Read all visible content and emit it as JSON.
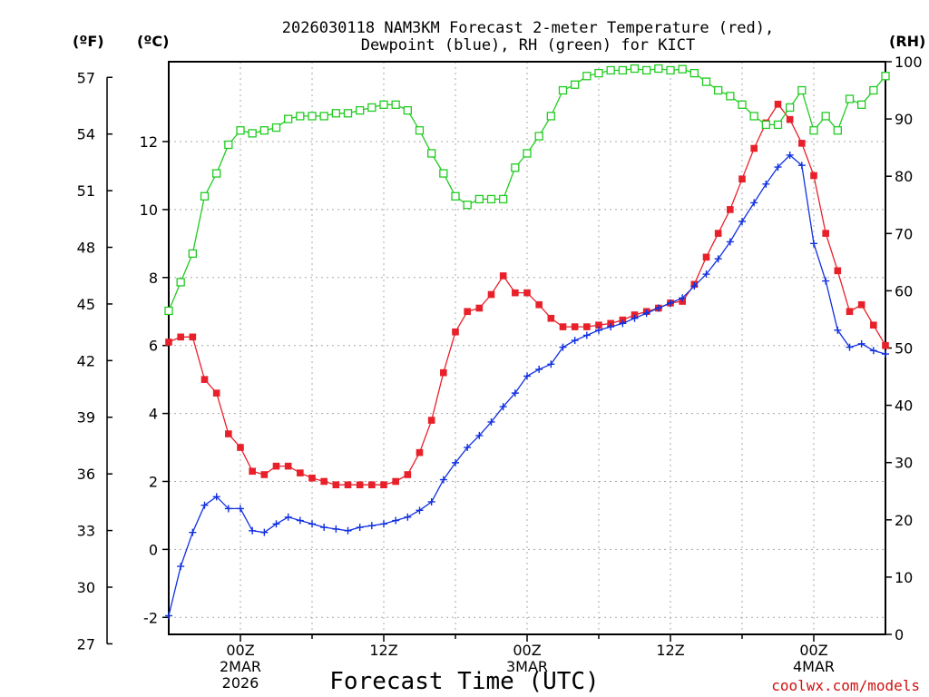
{
  "chart_data": {
    "type": "line",
    "title_line1": "2026030118 NAM3KM Forecast 2-meter Temperature (red),",
    "title_line2": "Dewpoint (blue), RH (green) for KICT",
    "xlabel": "Forecast Time (UTC)",
    "credit": "coolwx.com/models",
    "left_outer_unit": "(ºF)",
    "left_inner_unit": "(ºC)",
    "right_unit": "(RH)",
    "x_hours": [
      -6,
      42
    ],
    "ylim_c": [
      -2.5,
      14.35
    ],
    "ylim_rh": [
      0,
      100
    ],
    "f_ticks": [
      "27",
      "30",
      "33",
      "36",
      "39",
      "42",
      "45",
      "48",
      "51",
      "54",
      "57"
    ],
    "c_ticks": [
      "-2",
      "0",
      "2",
      "4",
      "6",
      "8",
      "10",
      "12"
    ],
    "rh_ticks": [
      "0",
      "10",
      "20",
      "30",
      "40",
      "50",
      "60",
      "70",
      "80",
      "90",
      "100"
    ],
    "x_ticks": [
      {
        "hour": 0,
        "label": "00Z",
        "sub1": "2MAR",
        "sub2": "2026"
      },
      {
        "hour": 12,
        "label": "12Z",
        "sub1": "",
        "sub2": ""
      },
      {
        "hour": 24,
        "label": "00Z",
        "sub1": "3MAR",
        "sub2": ""
      },
      {
        "hour": 36,
        "label": "12Z",
        "sub1": "",
        "sub2": ""
      },
      {
        "hour": 48,
        "label": "00Z",
        "sub1": "4MAR",
        "sub2": ""
      }
    ],
    "x_range_hours": [
      -6,
      54
    ],
    "series": [
      {
        "name": "Temperature",
        "units": "C",
        "color": "#e8202a",
        "marker": "filled-square",
        "hours": [
          -6,
          -5,
          -4,
          -3,
          -2,
          -1,
          0,
          1,
          2,
          3,
          4,
          5,
          6,
          7,
          8,
          9,
          10,
          11,
          12,
          13,
          14,
          15,
          16,
          17,
          18,
          19,
          20,
          21,
          22,
          23,
          24,
          25,
          26,
          27,
          28,
          29,
          30,
          31,
          32,
          33,
          34,
          35,
          36,
          37,
          38,
          39,
          40,
          41,
          42,
          43,
          44,
          45,
          46,
          47,
          48,
          49,
          50,
          51,
          52,
          53,
          54
        ],
        "values": [
          6.1,
          6.25,
          6.25,
          5.0,
          4.6,
          3.4,
          3.0,
          2.3,
          2.2,
          2.45,
          2.45,
          2.25,
          2.1,
          2.0,
          1.9,
          1.9,
          1.9,
          1.9,
          1.9,
          2.0,
          2.2,
          2.85,
          3.8,
          5.2,
          6.4,
          7.0,
          7.1,
          7.5,
          8.05,
          7.55,
          7.55,
          7.2,
          6.8,
          6.55,
          6.55,
          6.55,
          6.6,
          6.65,
          6.75,
          6.9,
          7.0,
          7.1,
          7.25,
          7.3,
          7.8,
          8.6,
          9.3,
          10.0,
          10.9,
          11.8,
          12.55,
          13.1,
          12.65,
          11.95,
          11.0,
          9.3,
          8.2,
          7.0,
          7.2,
          6.6,
          6.0
        ]
      },
      {
        "name": "Dewpoint",
        "units": "C",
        "color": "#1030e0",
        "marker": "plus",
        "hours": [
          -6,
          -5,
          -4,
          -3,
          -2,
          -1,
          0,
          1,
          2,
          3,
          4,
          5,
          6,
          7,
          8,
          9,
          10,
          11,
          12,
          13,
          14,
          15,
          16,
          17,
          18,
          19,
          20,
          21,
          22,
          23,
          24,
          25,
          26,
          27,
          28,
          29,
          30,
          31,
          32,
          33,
          34,
          35,
          36,
          37,
          38,
          39,
          40,
          41,
          42,
          43,
          44,
          45,
          46,
          47,
          48,
          49,
          50,
          51,
          52,
          53,
          54
        ],
        "values": [
          -1.95,
          -0.5,
          0.5,
          1.3,
          1.55,
          1.2,
          1.2,
          0.55,
          0.5,
          0.75,
          0.95,
          0.85,
          0.75,
          0.65,
          0.6,
          0.55,
          0.65,
          0.7,
          0.75,
          0.85,
          0.95,
          1.15,
          1.4,
          2.05,
          2.55,
          3.0,
          3.35,
          3.75,
          4.2,
          4.6,
          5.1,
          5.3,
          5.45,
          5.95,
          6.15,
          6.3,
          6.45,
          6.55,
          6.65,
          6.8,
          6.95,
          7.1,
          7.25,
          7.4,
          7.75,
          8.1,
          8.55,
          9.05,
          9.65,
          10.2,
          10.75,
          11.25,
          11.6,
          11.3,
          9.0,
          7.9,
          6.45,
          5.95,
          6.05,
          5.85,
          5.75
        ]
      },
      {
        "name": "RH",
        "units": "%",
        "color": "#20cc20",
        "marker": "open-square",
        "hours": [
          -6,
          -5,
          -4,
          -3,
          -2,
          -1,
          0,
          1,
          2,
          3,
          4,
          5,
          6,
          7,
          8,
          9,
          10,
          11,
          12,
          13,
          14,
          15,
          16,
          17,
          18,
          19,
          20,
          21,
          22,
          23,
          24,
          25,
          26,
          27,
          28,
          29,
          30,
          31,
          32,
          33,
          34,
          35,
          36,
          37,
          38,
          39,
          40,
          41,
          42,
          43,
          44,
          45,
          46,
          47,
          48,
          49,
          50,
          51,
          52,
          53,
          54
        ],
        "values": [
          56.5,
          61.5,
          66.5,
          76.5,
          80.5,
          85.5,
          88.0,
          87.5,
          88.0,
          88.5,
          90.0,
          90.5,
          90.5,
          90.5,
          91.0,
          91.0,
          91.5,
          92.0,
          92.5,
          92.5,
          91.5,
          88.0,
          84.0,
          80.5,
          76.5,
          75.0,
          76.0,
          76.0,
          76.0,
          81.5,
          84.0,
          87.0,
          90.5,
          95.0,
          96.0,
          97.5,
          98.0,
          98.5,
          98.5,
          98.8,
          98.5,
          98.8,
          98.5,
          98.7,
          98.0,
          96.5,
          95.0,
          94.0,
          92.5,
          90.5,
          89.0,
          89.0,
          92.0,
          95.0,
          88.0,
          90.5,
          88.0,
          93.5,
          92.5,
          95.0,
          97.5
        ]
      }
    ]
  }
}
